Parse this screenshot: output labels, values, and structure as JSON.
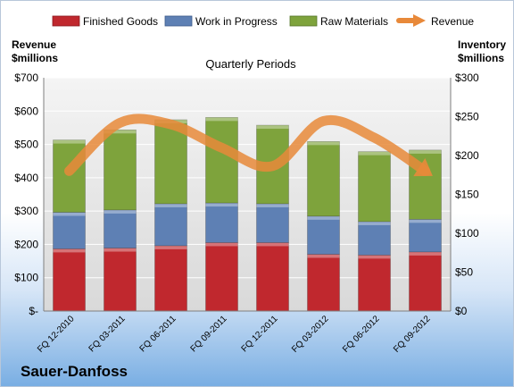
{
  "chart_data": {
    "type": "bar",
    "stacked": true,
    "title": "Quarterly Periods",
    "left_axis_label": [
      "Revenue",
      "$millions"
    ],
    "right_axis_label": [
      "Inventory",
      "$millions"
    ],
    "categories": [
      "FQ 12-2010",
      "FQ 03-2011",
      "FQ 06-2011",
      "FQ 09-2011",
      "FQ 12-2011",
      "FQ 03-2012",
      "FQ 06-2012",
      "FQ 09-2012"
    ],
    "left_ticks": [
      "$-",
      "$100",
      "$200",
      "$300",
      "$400",
      "$500",
      "$600",
      "$700"
    ],
    "right_ticks": [
      "$0",
      "$50",
      "$100",
      "$150",
      "$200",
      "$250",
      "$300"
    ],
    "ylim_left": [
      0,
      700
    ],
    "ylim_right": [
      0,
      300
    ],
    "series": [
      {
        "name": "Finished Goods",
        "axis": "right",
        "color": "#c0282e",
        "values": [
          80,
          81,
          84,
          88,
          88,
          73,
          72,
          76
        ]
      },
      {
        "name": "Work in Progress",
        "axis": "right",
        "color": "#5e80b4",
        "values": [
          47,
          49,
          54,
          51,
          50,
          49,
          43,
          42
        ]
      },
      {
        "name": "Raw Materials",
        "axis": "right",
        "color": "#7ea33c",
        "values": [
          93,
          103,
          108,
          110,
          101,
          96,
          90,
          89
        ]
      },
      {
        "name": "Revenue",
        "axis": "left",
        "type": "line",
        "color": "#e8893a",
        "values": [
          420,
          565,
          560,
          490,
          435,
          570,
          520,
          420
        ]
      }
    ],
    "legend_position": "top",
    "grid": true
  },
  "company": "Sauer-Danfoss"
}
